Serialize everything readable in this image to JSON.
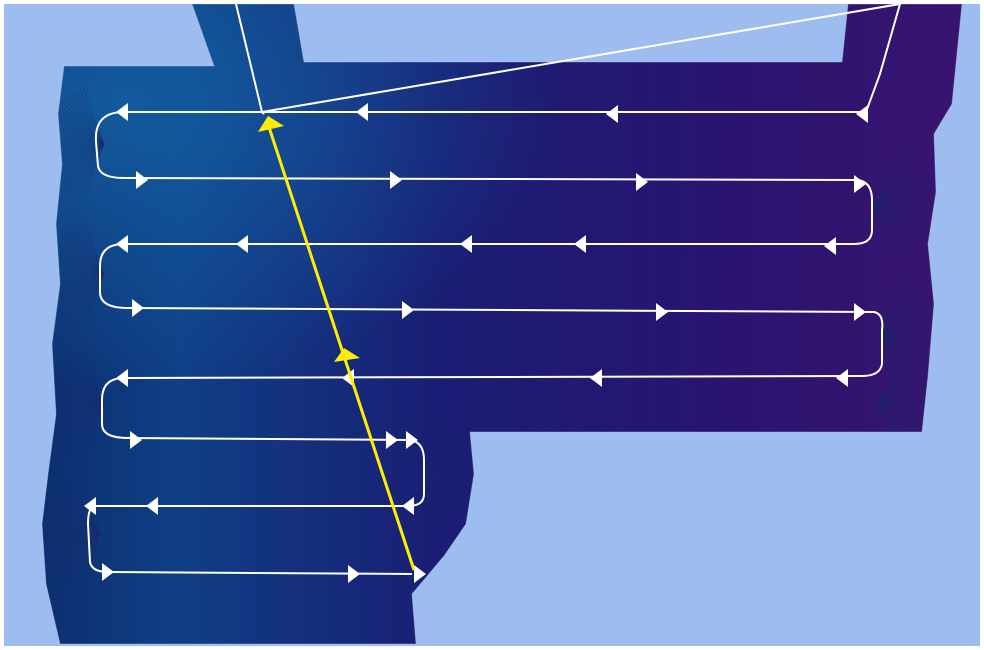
{
  "map": {
    "colors": {
      "background": "#9dbcf0",
      "survey_deep": "#0c1f63",
      "survey_mid": "#241271",
      "survey_shallow": "#3d146f",
      "survey_highlight": "#0f4d8c",
      "track": "#ffffff",
      "transect": "#ffee00"
    },
    "layers": [
      "bathymetry-coverage",
      "vessel-track",
      "transect-line"
    ]
  }
}
